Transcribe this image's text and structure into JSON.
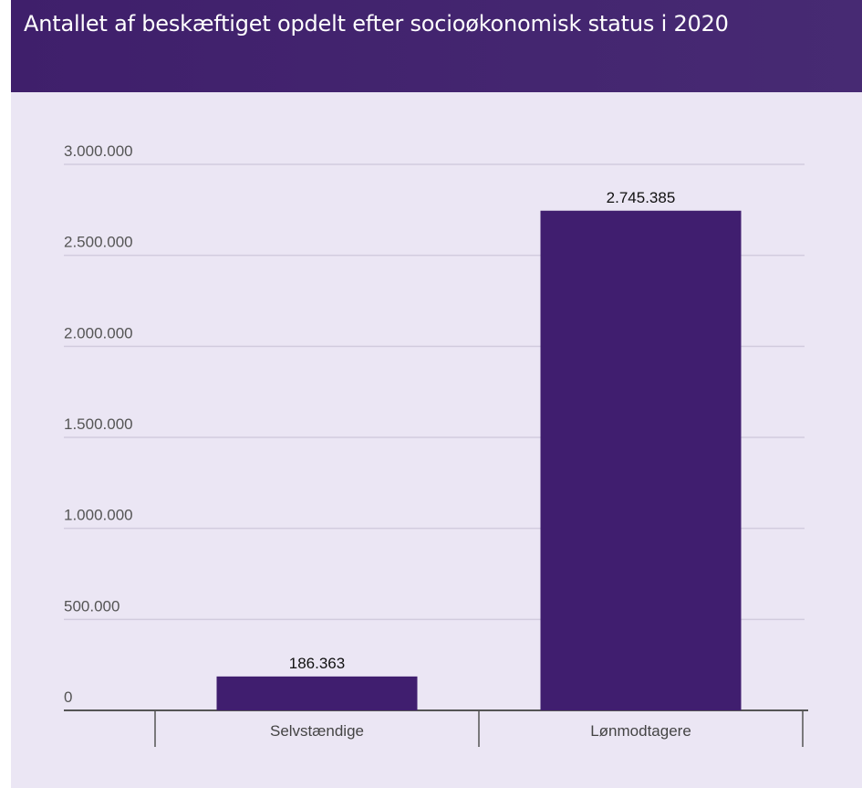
{
  "header": {
    "title": "Antallet af beskæftiget opdelt efter socioøkonomisk status i 2020"
  },
  "colors": {
    "banner": "#412171",
    "background": "#ebe6f4",
    "bar": "#401e6f",
    "grid": "#d2ccde",
    "axis": "#555555"
  },
  "chart_data": {
    "type": "bar",
    "title": "Antallet af beskæftiget opdelt efter socioøkonomisk status i 2020",
    "categories": [
      "Selvstændige",
      "Lønmodtagere"
    ],
    "values": [
      186363,
      2745385
    ],
    "value_labels": [
      "186.363",
      "2.745.385"
    ],
    "ylim": [
      0,
      3000000
    ],
    "yticks": [
      0,
      500000,
      1000000,
      1500000,
      2000000,
      2500000,
      3000000
    ],
    "ytick_labels": [
      "0",
      "500.000",
      "1.000.000",
      "1.500.000",
      "2.000.000",
      "2.500.000",
      "3.000.000"
    ],
    "xlabel": "",
    "ylabel": "",
    "grid": true,
    "legend": "none"
  }
}
